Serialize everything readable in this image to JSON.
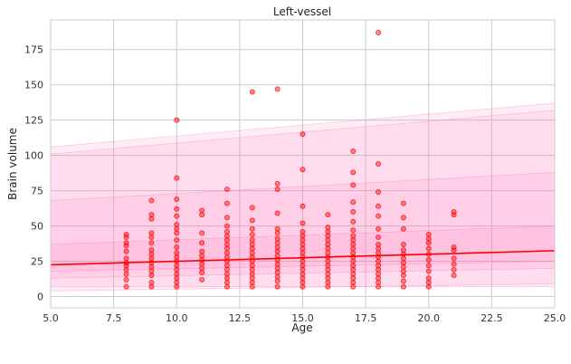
{
  "chart_data": {
    "type": "scatter",
    "title": "Left-vessel",
    "xlabel": "Age",
    "ylabel": "Brain volume",
    "xlim": [
      5,
      25
    ],
    "ylim": [
      -8,
      196
    ],
    "xticks": [
      5.0,
      7.5,
      10.0,
      12.5,
      15.0,
      17.5,
      20.0,
      22.5,
      25.0
    ],
    "xtick_labels": [
      "5.0",
      "7.5",
      "10.0",
      "12.5",
      "15.0",
      "17.5",
      "20.0",
      "22.5",
      "25.0"
    ],
    "yticks": [
      0,
      25,
      50,
      75,
      100,
      125,
      150,
      175
    ],
    "ytick_labels": [
      "0",
      "25",
      "50",
      "75",
      "100",
      "125",
      "150",
      "175"
    ],
    "grid": true,
    "colors": {
      "points": "#ff0000",
      "fit_line": "#ff0000",
      "band": "#ff69b4"
    },
    "fit_line": {
      "x": [
        5,
        25
      ],
      "y": [
        22.5,
        32.5
      ]
    },
    "bands": [
      {
        "x": [
          5,
          25
        ],
        "lower": [
          7,
          7
        ],
        "upper": [
          101,
          132
        ]
      },
      {
        "x": [
          5,
          25
        ],
        "lower": [
          13,
          20
        ],
        "upper": [
          68,
          88
        ]
      },
      {
        "x": [
          5,
          25
        ],
        "lower": [
          18,
          25
        ],
        "upper": [
          37,
          50
        ]
      },
      {
        "x": [
          5,
          25
        ],
        "lower": [
          4,
          9
        ],
        "upper": [
          106,
          137
        ]
      }
    ],
    "points": [
      [
        8,
        7
      ],
      [
        8,
        12
      ],
      [
        8,
        16
      ],
      [
        8,
        19
      ],
      [
        8,
        22
      ],
      [
        8,
        24
      ],
      [
        8,
        27
      ],
      [
        8,
        32
      ],
      [
        8,
        36
      ],
      [
        8,
        38
      ],
      [
        8,
        42
      ],
      [
        8,
        44
      ],
      [
        9,
        7
      ],
      [
        9,
        10
      ],
      [
        9,
        15
      ],
      [
        9,
        18
      ],
      [
        9,
        21
      ],
      [
        9,
        24
      ],
      [
        9,
        27
      ],
      [
        9,
        30
      ],
      [
        9,
        33
      ],
      [
        9,
        38
      ],
      [
        9,
        42
      ],
      [
        9,
        45
      ],
      [
        9,
        55
      ],
      [
        9,
        58
      ],
      [
        9,
        68
      ],
      [
        10,
        7
      ],
      [
        10,
        10
      ],
      [
        10,
        13
      ],
      [
        10,
        16
      ],
      [
        10,
        19
      ],
      [
        10,
        22
      ],
      [
        10,
        25
      ],
      [
        10,
        28
      ],
      [
        10,
        31
      ],
      [
        10,
        35
      ],
      [
        10,
        40
      ],
      [
        10,
        45
      ],
      [
        10,
        48
      ],
      [
        10,
        51
      ],
      [
        10,
        57
      ],
      [
        10,
        62
      ],
      [
        10,
        69
      ],
      [
        10,
        84
      ],
      [
        10,
        125
      ],
      [
        11,
        12
      ],
      [
        11,
        17
      ],
      [
        11,
        20
      ],
      [
        11,
        23
      ],
      [
        11,
        26
      ],
      [
        11,
        29
      ],
      [
        11,
        32
      ],
      [
        11,
        38
      ],
      [
        11,
        45
      ],
      [
        11,
        58
      ],
      [
        11,
        61
      ],
      [
        12,
        7
      ],
      [
        12,
        10
      ],
      [
        12,
        13
      ],
      [
        12,
        16
      ],
      [
        12,
        19
      ],
      [
        12,
        22
      ],
      [
        12,
        25
      ],
      [
        12,
        28
      ],
      [
        12,
        31
      ],
      [
        12,
        34
      ],
      [
        12,
        37
      ],
      [
        12,
        40
      ],
      [
        12,
        43
      ],
      [
        12,
        46
      ],
      [
        12,
        50
      ],
      [
        12,
        56
      ],
      [
        12,
        66
      ],
      [
        12,
        76
      ],
      [
        13,
        7
      ],
      [
        13,
        10
      ],
      [
        13,
        13
      ],
      [
        13,
        16
      ],
      [
        13,
        19
      ],
      [
        13,
        22
      ],
      [
        13,
        25
      ],
      [
        13,
        28
      ],
      [
        13,
        31
      ],
      [
        13,
        34
      ],
      [
        13,
        37
      ],
      [
        13,
        40
      ],
      [
        13,
        44
      ],
      [
        13,
        48
      ],
      [
        13,
        54
      ],
      [
        13,
        63
      ],
      [
        13,
        145
      ],
      [
        14,
        7
      ],
      [
        14,
        11
      ],
      [
        14,
        14
      ],
      [
        14,
        17
      ],
      [
        14,
        20
      ],
      [
        14,
        23
      ],
      [
        14,
        26
      ],
      [
        14,
        29
      ],
      [
        14,
        32
      ],
      [
        14,
        35
      ],
      [
        14,
        38
      ],
      [
        14,
        41
      ],
      [
        14,
        45
      ],
      [
        14,
        48
      ],
      [
        14,
        59
      ],
      [
        14,
        76
      ],
      [
        14,
        80
      ],
      [
        14,
        147
      ],
      [
        15,
        7
      ],
      [
        15,
        10
      ],
      [
        15,
        13
      ],
      [
        15,
        16
      ],
      [
        15,
        19
      ],
      [
        15,
        22
      ],
      [
        15,
        25
      ],
      [
        15,
        28
      ],
      [
        15,
        31
      ],
      [
        15,
        34
      ],
      [
        15,
        37
      ],
      [
        15,
        40
      ],
      [
        15,
        43
      ],
      [
        15,
        46
      ],
      [
        15,
        52
      ],
      [
        15,
        64
      ],
      [
        15,
        90
      ],
      [
        15,
        115
      ],
      [
        16,
        7
      ],
      [
        16,
        10
      ],
      [
        16,
        13
      ],
      [
        16,
        16
      ],
      [
        16,
        19
      ],
      [
        16,
        22
      ],
      [
        16,
        25
      ],
      [
        16,
        28
      ],
      [
        16,
        31
      ],
      [
        16,
        34
      ],
      [
        16,
        37
      ],
      [
        16,
        40
      ],
      [
        16,
        43
      ],
      [
        16,
        46
      ],
      [
        16,
        49
      ],
      [
        16,
        58
      ],
      [
        17,
        7
      ],
      [
        17,
        10
      ],
      [
        17,
        13
      ],
      [
        17,
        16
      ],
      [
        17,
        19
      ],
      [
        17,
        22
      ],
      [
        17,
        25
      ],
      [
        17,
        28
      ],
      [
        17,
        31
      ],
      [
        17,
        34
      ],
      [
        17,
        37
      ],
      [
        17,
        40
      ],
      [
        17,
        43
      ],
      [
        17,
        47
      ],
      [
        17,
        53
      ],
      [
        17,
        60
      ],
      [
        17,
        67
      ],
      [
        17,
        79
      ],
      [
        17,
        88
      ],
      [
        17,
        103
      ],
      [
        18,
        7
      ],
      [
        18,
        10
      ],
      [
        18,
        13
      ],
      [
        18,
        16
      ],
      [
        18,
        19
      ],
      [
        18,
        22
      ],
      [
        18,
        25
      ],
      [
        18,
        28
      ],
      [
        18,
        31
      ],
      [
        18,
        34
      ],
      [
        18,
        37
      ],
      [
        18,
        42
      ],
      [
        18,
        48
      ],
      [
        18,
        57
      ],
      [
        18,
        64
      ],
      [
        18,
        74
      ],
      [
        18,
        94
      ],
      [
        18,
        187
      ],
      [
        19,
        7
      ],
      [
        19,
        11
      ],
      [
        19,
        15
      ],
      [
        19,
        18
      ],
      [
        19,
        21
      ],
      [
        19,
        24
      ],
      [
        19,
        27
      ],
      [
        19,
        30
      ],
      [
        19,
        33
      ],
      [
        19,
        37
      ],
      [
        19,
        48
      ],
      [
        19,
        56
      ],
      [
        19,
        66
      ],
      [
        20,
        7
      ],
      [
        20,
        10
      ],
      [
        20,
        13
      ],
      [
        20,
        18
      ],
      [
        20,
        22
      ],
      [
        20,
        26
      ],
      [
        20,
        30
      ],
      [
        20,
        34
      ],
      [
        20,
        38
      ],
      [
        20,
        41
      ],
      [
        20,
        44
      ],
      [
        21,
        15
      ],
      [
        21,
        19
      ],
      [
        21,
        23
      ],
      [
        21,
        27
      ],
      [
        21,
        33
      ],
      [
        21,
        35
      ],
      [
        21,
        58
      ],
      [
        21,
        60
      ]
    ]
  }
}
